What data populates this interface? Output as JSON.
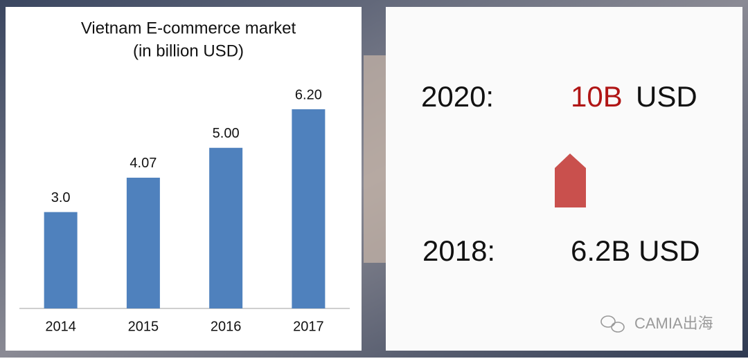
{
  "chart_data": {
    "type": "bar",
    "title": "Vietnam E-commerce market",
    "subtitle": "(in billion USD)",
    "categories": [
      "2014",
      "2015",
      "2016",
      "2017"
    ],
    "values": [
      3.0,
      4.07,
      5.0,
      6.2
    ],
    "value_labels": [
      "3.0",
      "4.07",
      "5.00",
      "6.20"
    ],
    "color": "#4f81bd"
  },
  "panel": {
    "forecast": {
      "label": "2020:",
      "value": "10B",
      "unit": "USD"
    },
    "current": {
      "label": "2018:",
      "value": "6.2B USD"
    }
  },
  "watermark": "CAMIA出海"
}
